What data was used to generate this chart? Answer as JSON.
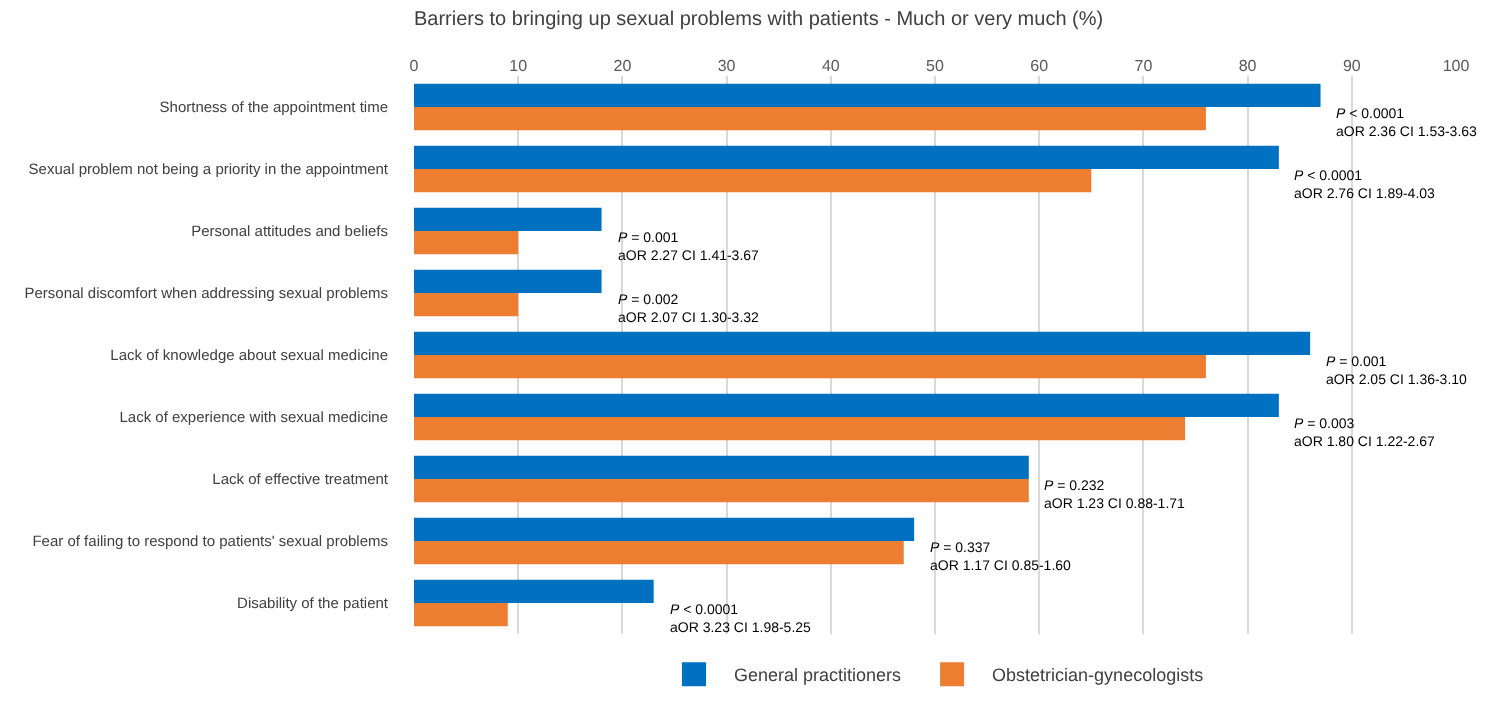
{
  "chart_data": {
    "type": "bar",
    "orientation": "horizontal",
    "title": "Barriers to bringing up sexual problems with patients - Much or very much (%)",
    "categories": [
      "Shortness of the appointment time",
      "Sexual problem not being a priority in the appointment",
      "Personal attitudes and beliefs",
      "Personal discomfort when addressing sexual problems",
      "Lack of knowledge about sexual medicine",
      "Lack of experience with sexual medicine",
      "Lack of effective treatment",
      "Fear of failing to respond to patients' sexual problems",
      "Disability of the patient"
    ],
    "series": [
      {
        "name": "General practitioners",
        "color": "#0070c0",
        "values": [
          87,
          83,
          18,
          18,
          86,
          83,
          59,
          48,
          23
        ]
      },
      {
        "name": "Obstetrician-gynecologists",
        "color": "#ed7d31",
        "values": [
          76,
          65,
          10,
          10,
          76,
          74,
          59,
          47,
          9
        ]
      }
    ],
    "xlim": [
      0,
      100
    ],
    "xticks": [
      0,
      10,
      20,
      30,
      40,
      50,
      60,
      70,
      80,
      90,
      100
    ],
    "grid": "x",
    "legend": "bottom",
    "annotations": [
      {
        "text": "P < 0.0001\naOR 2.36 CI 1.53-3.63",
        "x": 87,
        "y": "Shortness of the appointment time"
      },
      {
        "text": "P < 0.0001\naOR 2.76 CI 1.89-4.03",
        "x": 83,
        "y": "Sexual problem not being a priority in the appointment"
      },
      {
        "text": "P = 0.001\naOR 2.27 CI 1.41-3.67",
        "x": 18,
        "y": "Personal attitudes and beliefs"
      },
      {
        "text": "P = 0.002\naOR 2.07 CI 1.30-3.32",
        "x": 18,
        "y": "Personal discomfort when addressing sexual problems"
      },
      {
        "text": "P = 0.001\naOR 2.05 CI 1.36-3.10",
        "x": 86,
        "y": "Lack of knowledge about sexual medicine"
      },
      {
        "text": "P = 0.003\naOR 1.80 CI 1.22-2.67",
        "x": 83,
        "y": "Lack of experience with sexual medicine"
      },
      {
        "text": "P = 0.232\naOR 1.23 CI 0.88-1.71",
        "x": 59,
        "y": "Lack of effective treatment"
      },
      {
        "text": "P = 0.337\naOR 1.17 CI 0.85-1.60",
        "x": 48,
        "y": "Fear of failing to respond to patients' sexual problems"
      },
      {
        "text": "P < 0.0001\naOR 3.23 CI 1.98-5.25",
        "x": 23,
        "y": "Disability of the patient"
      }
    ]
  }
}
